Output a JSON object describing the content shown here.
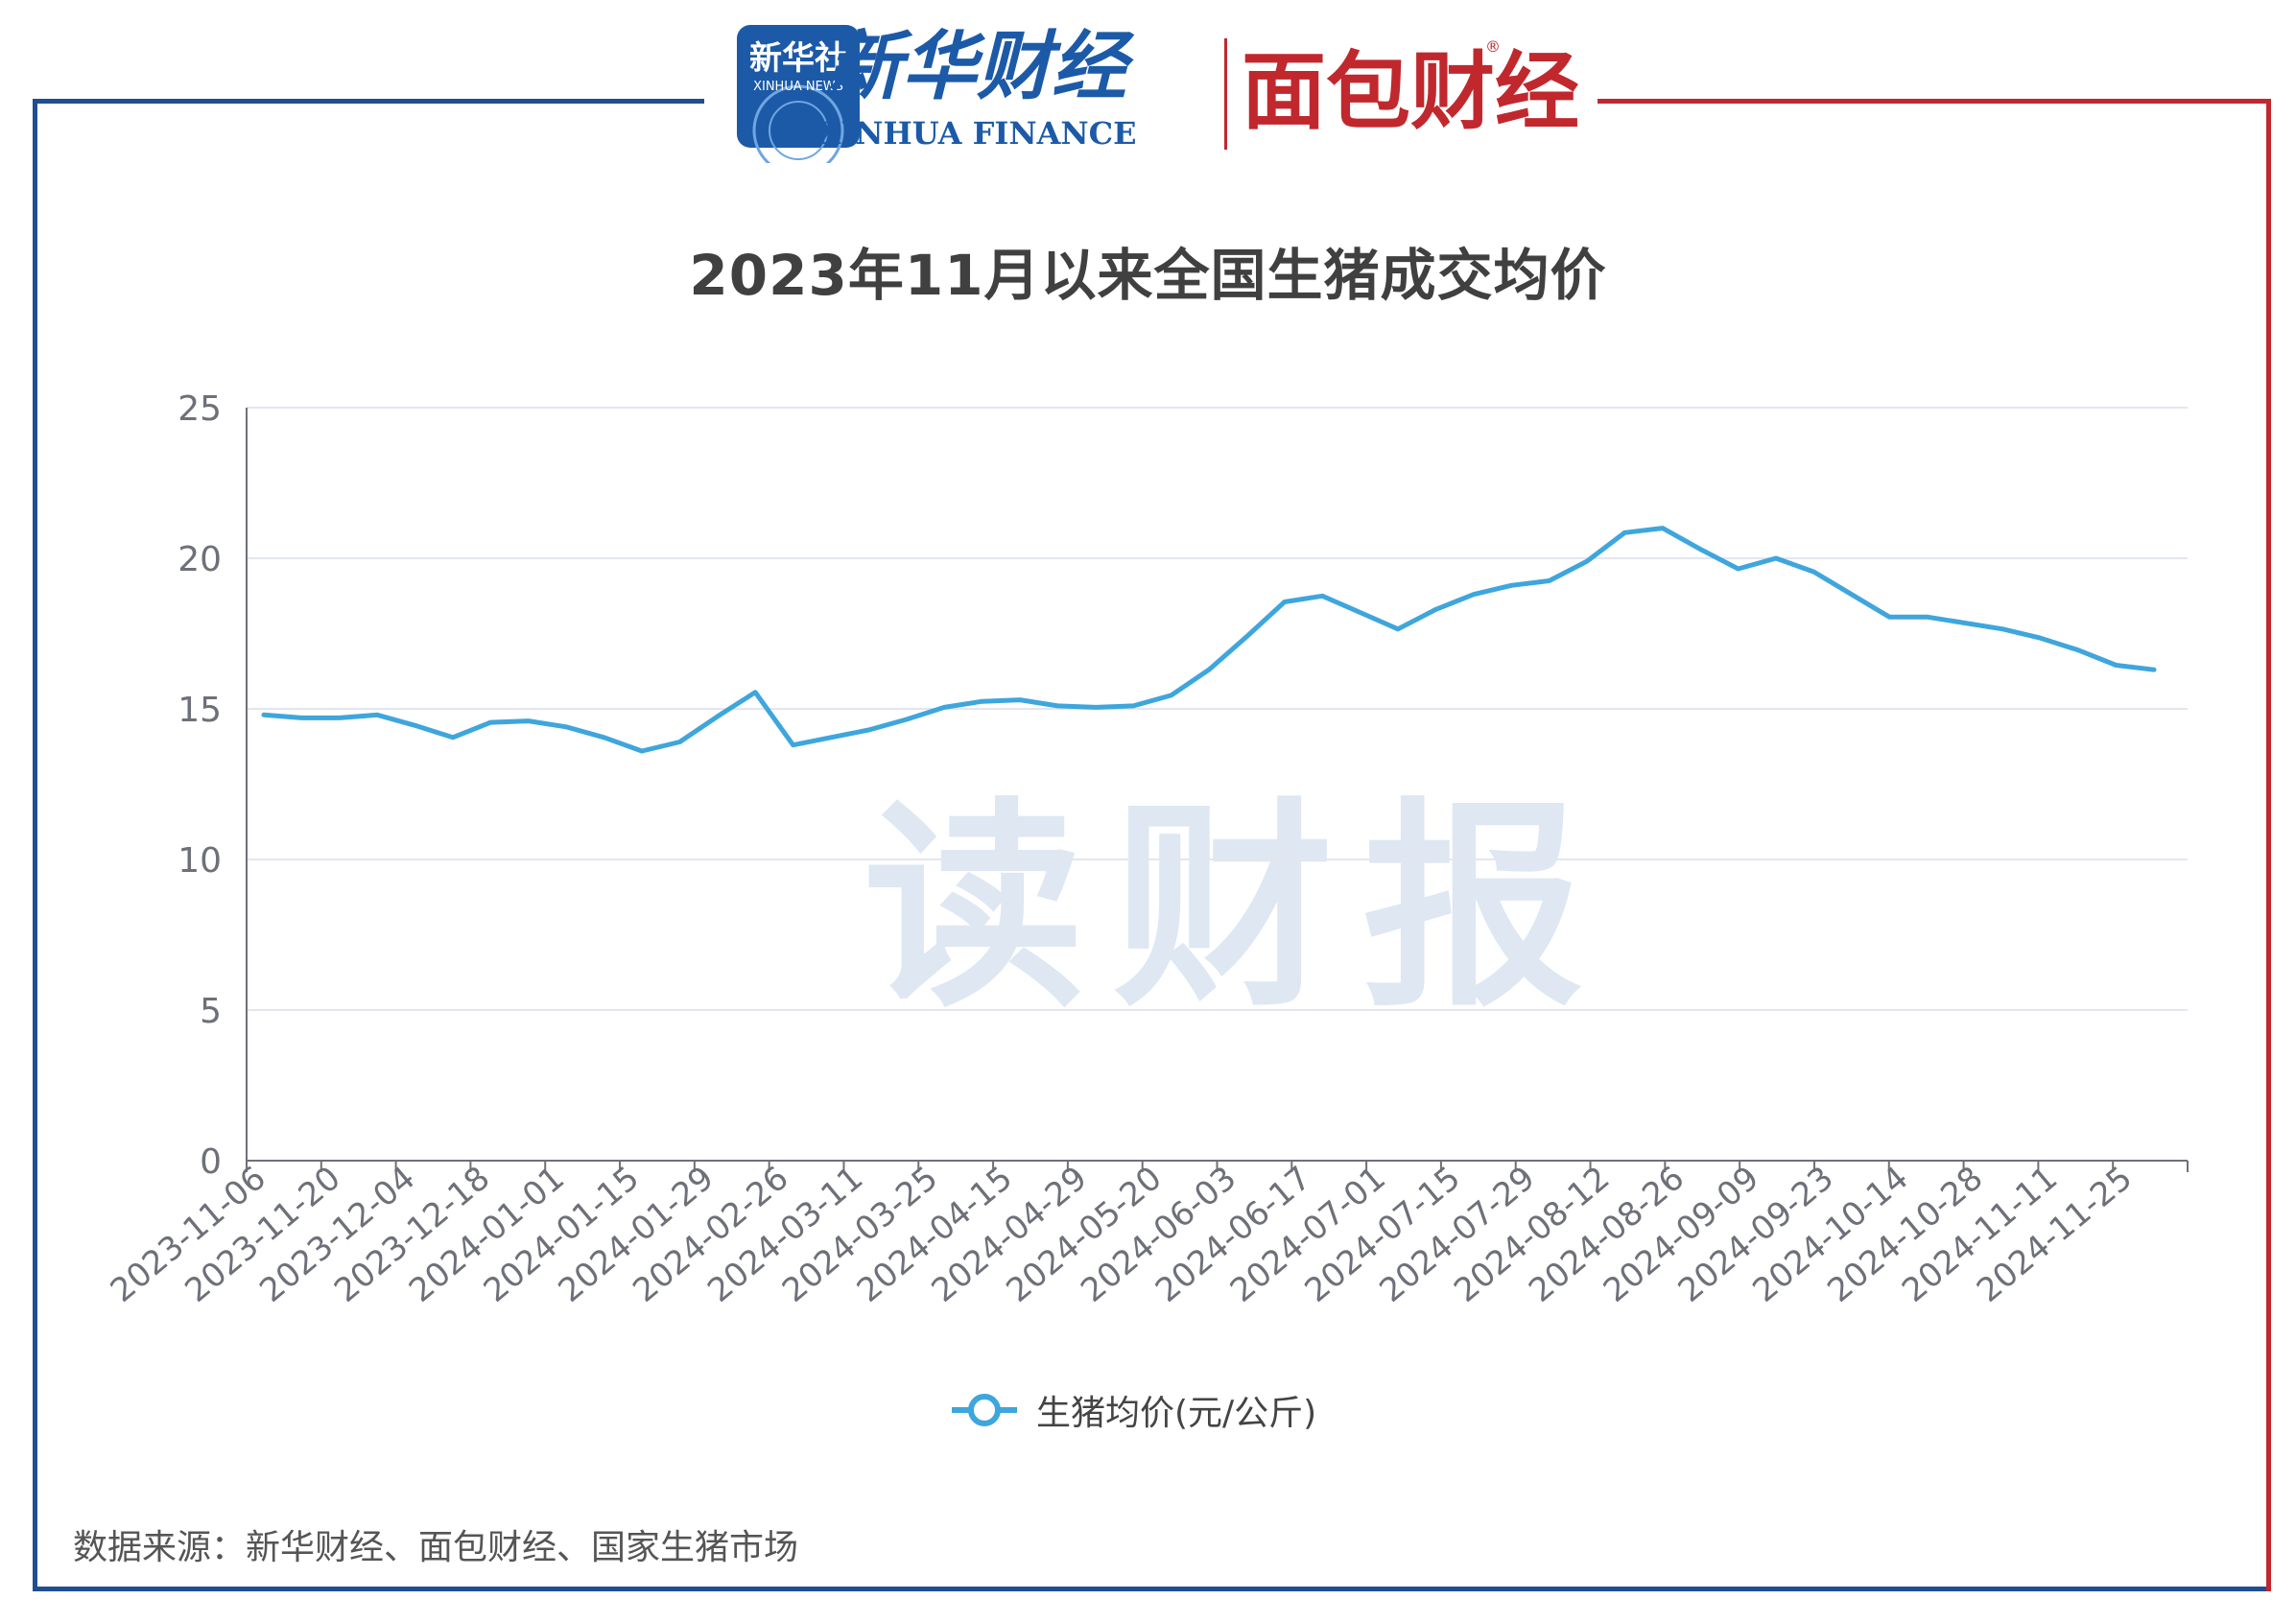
{
  "header": {
    "xinhua_news_cn": "新华社",
    "xinhua_news_en": "XINHUA NEWS",
    "xinhua_finance_cn": "新华财经",
    "xinhua_finance_en": "XINHUA FINANCE",
    "mianbao_cn": "面包财经",
    "registered_mark": "®"
  },
  "title": "2023年11月以来全国生猪成交均价",
  "watermark": "读财报",
  "source_note": "数据来源：新华财经、面包财经、国家生猪市场",
  "colors": {
    "frame_left": "#1f4e91",
    "frame_right": "#c0282e",
    "line": "#3ea6dc",
    "grid": "#e3e6f0",
    "axis": "#6e7079",
    "mianbao_red": "#c0282e",
    "xinhua_blue": "#1c5aa8"
  },
  "chart_data": {
    "type": "line",
    "title": "2023年11月以来全国生猪成交均价",
    "xlabel": "",
    "ylabel": "",
    "ylim": [
      0,
      25
    ],
    "yticks": [
      0,
      5,
      10,
      15,
      20,
      25
    ],
    "grid": true,
    "legend_position": "bottom-center",
    "x_tick_labels": [
      "2023-11-06",
      "2023-11-20",
      "2023-12-04",
      "2023-12-18",
      "2024-01-01",
      "2024-01-15",
      "2024-01-29",
      "2024-02-26",
      "2024-03-11",
      "2024-03-25",
      "2024-04-15",
      "2024-04-29",
      "2024-05-20",
      "2024-06-03",
      "2024-06-17",
      "2024-07-01",
      "2024-07-15",
      "2024-07-29",
      "2024-08-12",
      "2024-08-26",
      "2024-09-09",
      "2024-09-23",
      "2024-10-14",
      "2024-10-28",
      "2024-11-11",
      "2024-11-25"
    ],
    "series": [
      {
        "name": "生猪均价(元/公斤)",
        "values": [
          14.8,
          14.7,
          14.7,
          14.8,
          14.45,
          14.05,
          14.55,
          14.6,
          14.4,
          14.05,
          13.6,
          13.9,
          14.75,
          15.55,
          13.8,
          14.05,
          14.3,
          14.65,
          15.05,
          15.25,
          15.3,
          15.1,
          15.05,
          15.1,
          15.45,
          16.3,
          17.4,
          18.55,
          18.75,
          18.2,
          17.65,
          18.3,
          18.8,
          19.1,
          19.25,
          19.9,
          20.85,
          21.0,
          20.3,
          19.65,
          20.0,
          19.55,
          18.8,
          18.05,
          18.05,
          17.85,
          17.65,
          17.35,
          16.95,
          16.45,
          16.3
        ]
      }
    ]
  }
}
